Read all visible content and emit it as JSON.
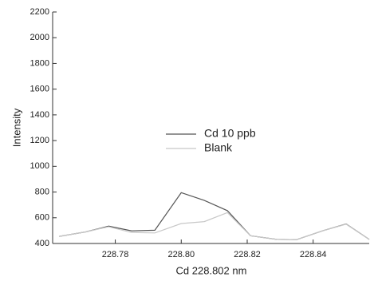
{
  "chart_data": {
    "type": "line",
    "x_label": "Cd 228.802 nm",
    "y_label": "Intensity",
    "x": [
      228.763,
      228.771,
      228.778,
      228.785,
      228.792,
      228.8,
      228.807,
      228.814,
      228.821,
      228.829,
      228.835,
      228.843,
      228.85,
      228.857
    ],
    "series": [
      {
        "name": "Cd 10 ppb",
        "color": "#555555",
        "values": [
          455,
          490,
          535,
          498,
          503,
          795,
          735,
          655,
          460,
          432,
          430,
          500,
          552,
          432
        ]
      },
      {
        "name": "Blank",
        "color": "#c8c8c8",
        "values": [
          455,
          490,
          530,
          485,
          482,
          555,
          570,
          640,
          460,
          432,
          430,
          500,
          550,
          432
        ]
      }
    ],
    "xlim": [
      228.761,
      228.857
    ],
    "xticks": [
      228.78,
      {
        "value": 228.8,
        "label": "228.80"
      },
      228.82,
      228.84
    ],
    "ylim": [
      400,
      2200
    ],
    "yticks": [
      400,
      600,
      800,
      1000,
      1200,
      1400,
      1600,
      1800,
      2000,
      2200
    ],
    "legend": "center"
  }
}
